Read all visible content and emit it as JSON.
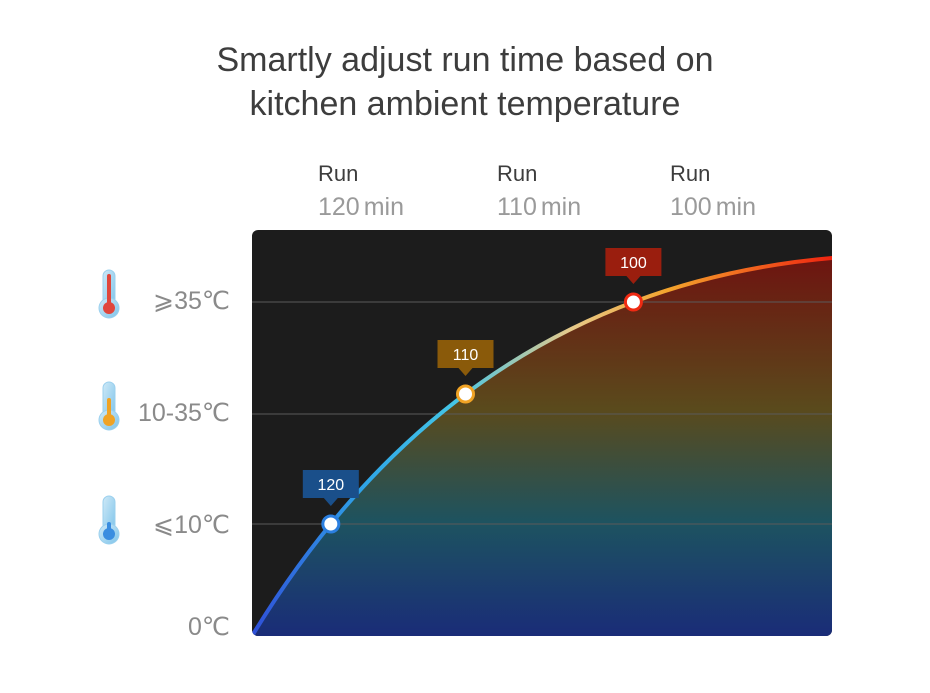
{
  "title": {
    "line1": "Smartly adjust run time based on",
    "line2": "kitchen ambient temperature"
  },
  "run_columns": [
    {
      "label": "Run",
      "value": "120",
      "unit": "min"
    },
    {
      "label": "Run",
      "value": "110",
      "unit": "min"
    },
    {
      "label": "Run",
      "value": "100",
      "unit": "min"
    }
  ],
  "temperature_rows": [
    {
      "label": "⩾35℃",
      "icon": "thermometer-hot-icon"
    },
    {
      "label": "10-35℃",
      "icon": "thermometer-warm-icon"
    },
    {
      "label": "⩽10℃",
      "icon": "thermometer-cold-icon"
    }
  ],
  "zero_label": "0℃",
  "chart_data": {
    "type": "line",
    "title": "Smartly adjust run time based on kitchen ambient temperature",
    "points": [
      {
        "band": "≤10℃",
        "run_min": 120,
        "badge": "120",
        "color": "#1a4f8a"
      },
      {
        "band": "10-35℃",
        "run_min": 110,
        "badge": "110",
        "color": "#8a5a0a"
      },
      {
        "band": "≥35℃",
        "run_min": 100,
        "badge": "100",
        "color": "#9a1e0e"
      }
    ],
    "grid": true,
    "colors": {
      "background": "#1c1c1c",
      "curve_start": "#2f5ed8",
      "curve_mid": "#f2b234",
      "curve_end": "#ef2a12"
    }
  }
}
